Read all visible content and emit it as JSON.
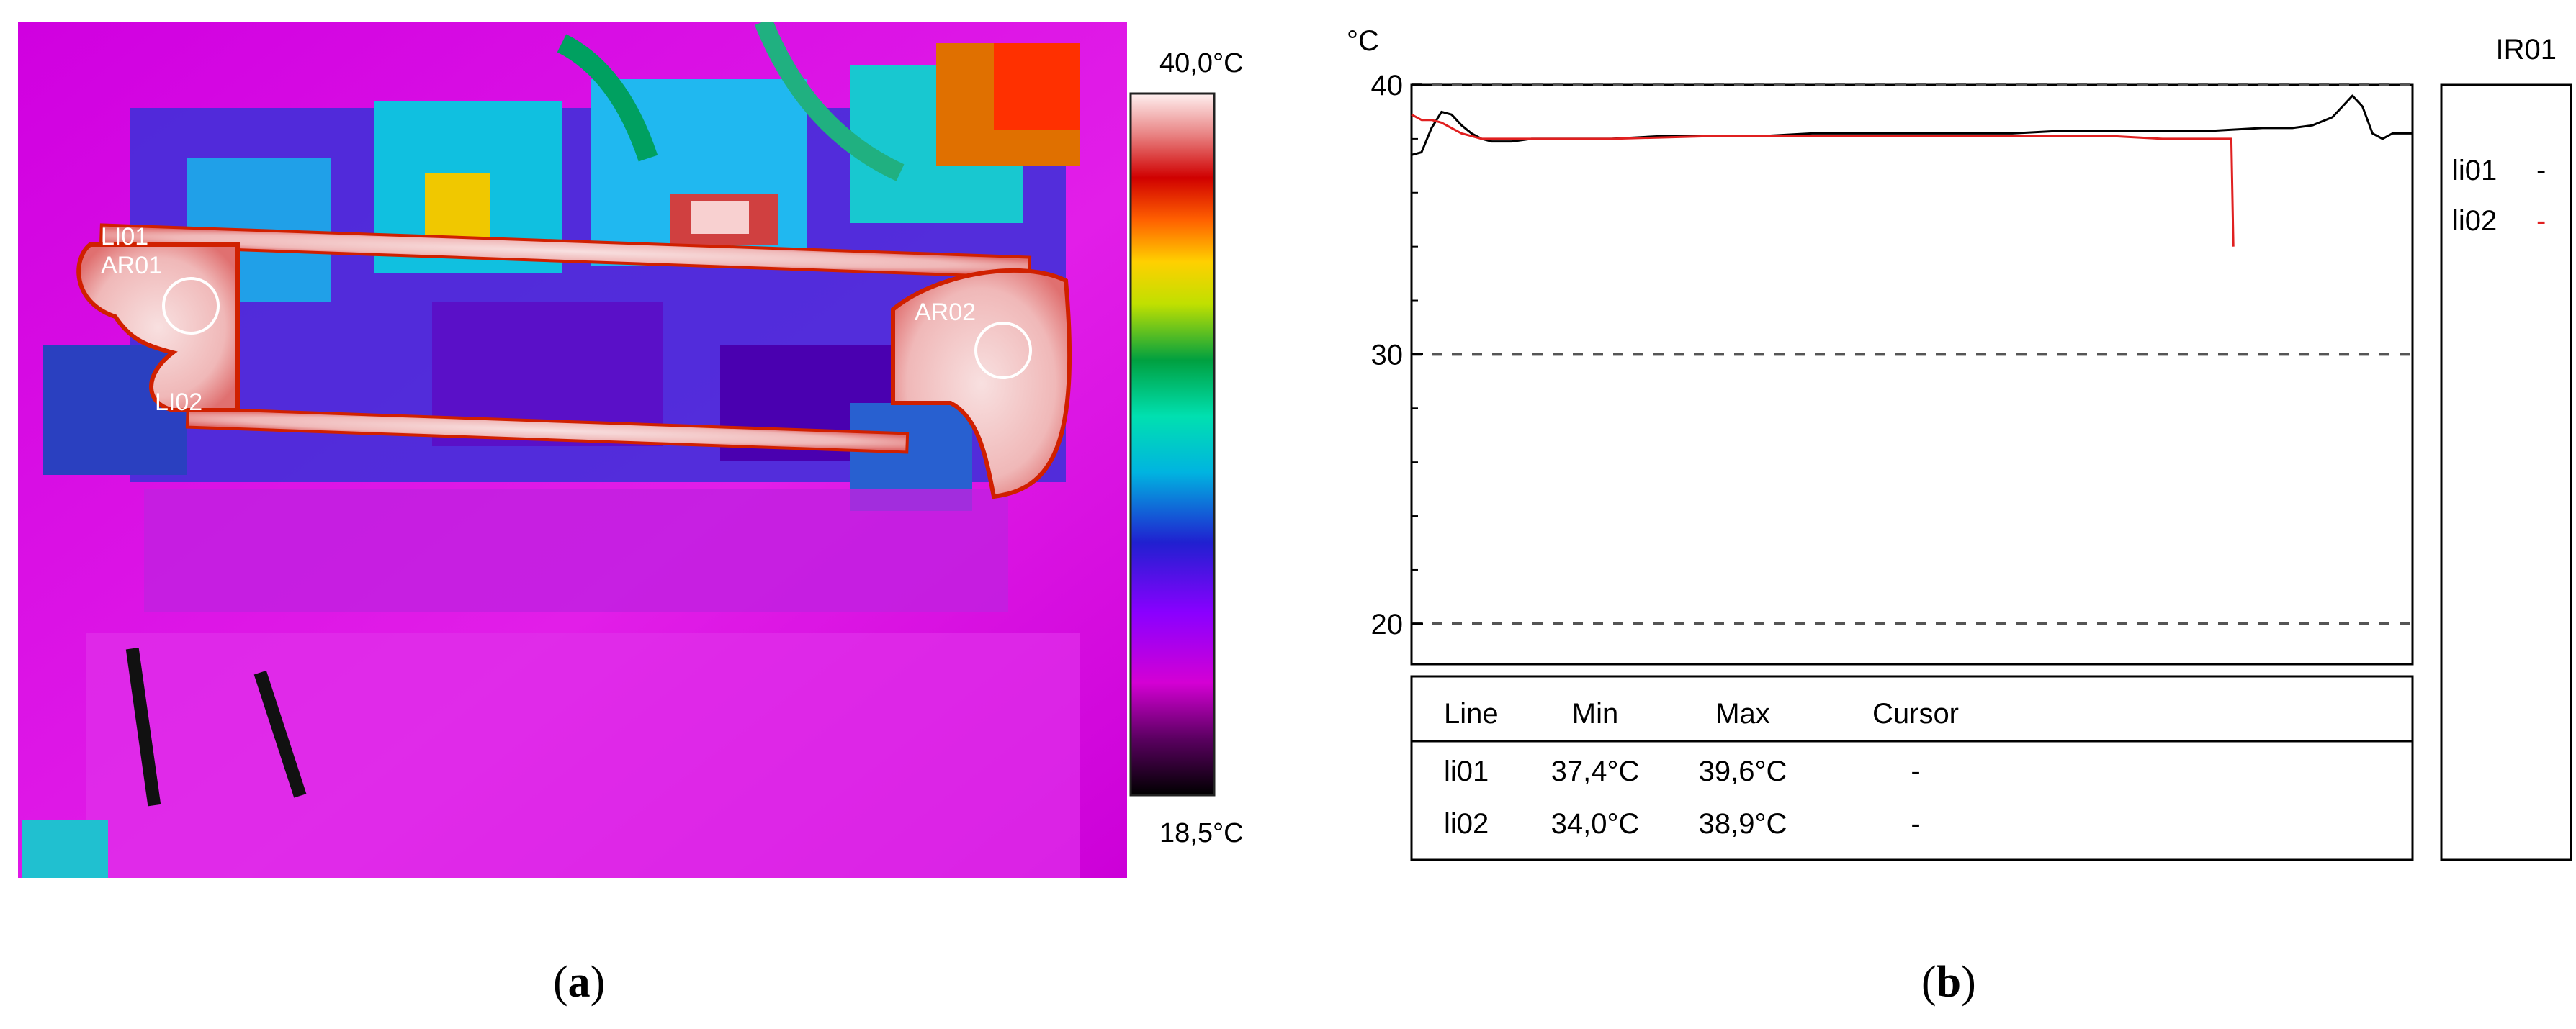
{
  "panel_a": {
    "caption_letter": "a",
    "scale_max": "40,0°C",
    "scale_min": "18,5°C",
    "markers": {
      "li01": "LI01",
      "ar01": "AR01",
      "li02": "LI02",
      "ar02": "AR02"
    }
  },
  "panel_b": {
    "caption_letter": "b",
    "unit": "°C",
    "probe": "IR01",
    "legend": [
      {
        "name": "li01",
        "mark": "-",
        "color": "#000000"
      },
      {
        "name": "li02",
        "mark": "-",
        "color": "#e02020"
      }
    ],
    "table": {
      "headers": [
        "Line",
        "Min",
        "Max",
        "Cursor"
      ],
      "rows": [
        [
          "li01",
          "37,4°C",
          "39,6°C",
          "-"
        ],
        [
          "li02",
          "34,0°C",
          "38,9°C",
          "-"
        ]
      ]
    }
  },
  "chart_data": {
    "type": "line",
    "ylabel": "°C",
    "ylim": [
      18.5,
      40
    ],
    "yticks": [
      20,
      30,
      40
    ],
    "xlim": [
      0,
      100
    ],
    "grid": "dashed at 20, 30, 40",
    "legend_position": "right",
    "series": [
      {
        "name": "li01",
        "color": "#000000",
        "x": [
          0,
          1,
          2,
          3,
          4,
          5,
          6,
          7,
          8,
          10,
          12,
          15,
          20,
          25,
          30,
          35,
          40,
          45,
          50,
          55,
          60,
          65,
          70,
          75,
          80,
          85,
          88,
          90,
          92,
          93,
          94,
          95,
          96,
          97,
          98,
          100
        ],
        "y": [
          37.4,
          37.5,
          38.4,
          39.0,
          38.9,
          38.5,
          38.2,
          38.0,
          37.9,
          37.9,
          38.0,
          38.0,
          38.0,
          38.1,
          38.1,
          38.1,
          38.2,
          38.2,
          38.2,
          38.2,
          38.2,
          38.3,
          38.3,
          38.3,
          38.3,
          38.4,
          38.4,
          38.5,
          38.8,
          39.2,
          39.6,
          39.2,
          38.2,
          38.0,
          38.2,
          38.2
        ]
      },
      {
        "name": "li02",
        "color": "#e02020",
        "x": [
          0,
          1,
          2,
          3,
          4,
          5,
          6,
          7,
          8,
          10,
          15,
          20,
          30,
          40,
          50,
          60,
          70,
          75,
          80,
          81.9,
          82.1
        ],
        "y": [
          38.9,
          38.7,
          38.7,
          38.6,
          38.4,
          38.2,
          38.1,
          38.0,
          38.0,
          38.0,
          38.0,
          38.0,
          38.1,
          38.1,
          38.1,
          38.1,
          38.1,
          38.0,
          38.0,
          38.0,
          34.0
        ]
      }
    ]
  }
}
